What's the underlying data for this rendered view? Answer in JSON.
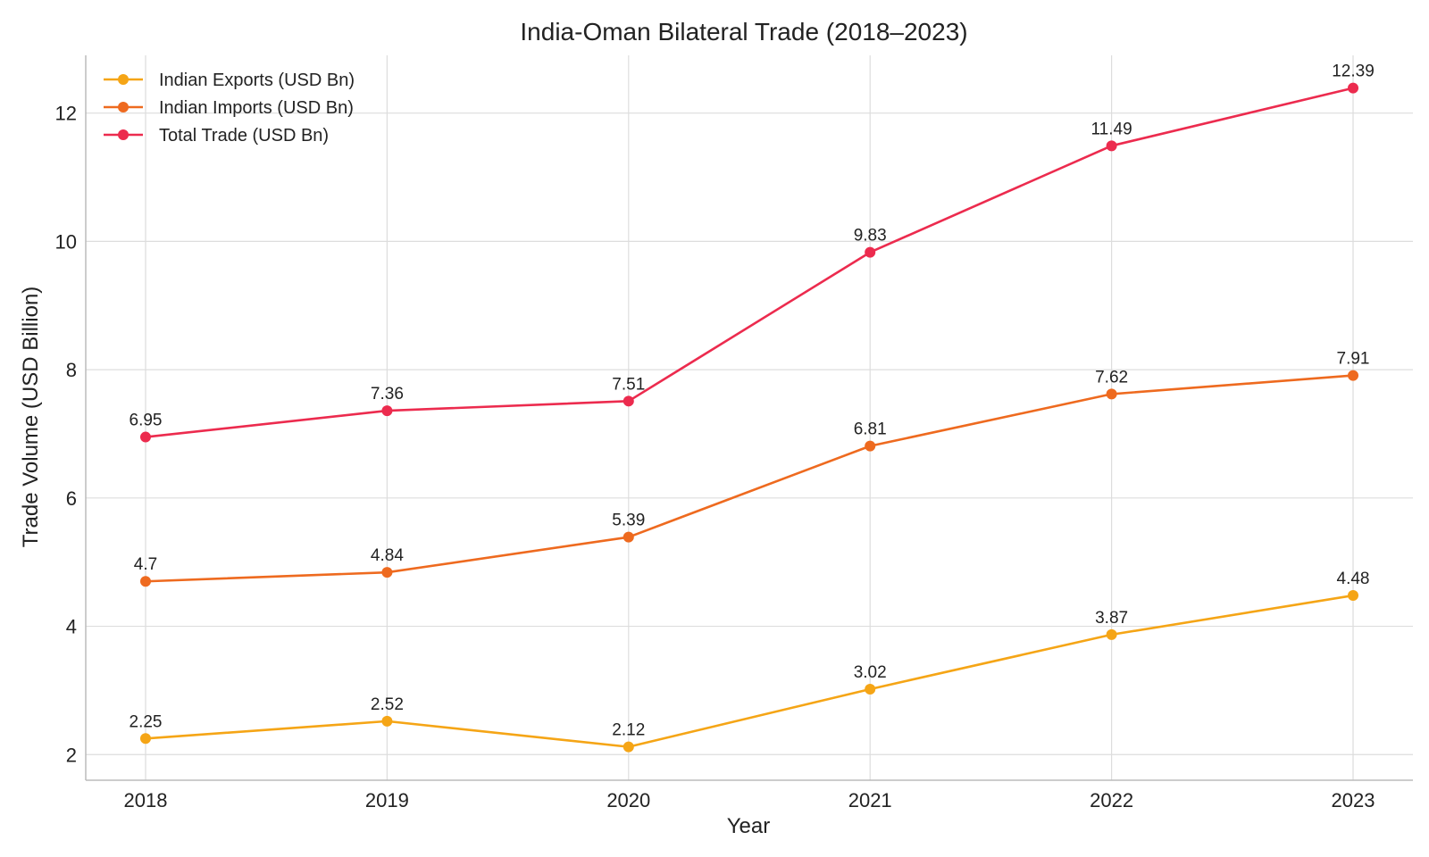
{
  "chart_data": {
    "type": "line",
    "title": "India-Oman Bilateral Trade (2018–2023)",
    "xlabel": "Year",
    "ylabel": "Trade Volume (USD Billion)",
    "categories": [
      "2018",
      "2019",
      "2020",
      "2021",
      "2022",
      "2023"
    ],
    "ylim": [
      1.6,
      12.9
    ],
    "yticks": [
      2,
      4,
      6,
      8,
      10,
      12
    ],
    "grid": true,
    "legend_position": "top-left",
    "series": [
      {
        "name": "Indian Exports (USD Bn)",
        "color": "#F5A516",
        "values": [
          2.25,
          2.52,
          2.12,
          3.02,
          3.87,
          4.48
        ],
        "labels": [
          "2.25",
          "2.52",
          "2.12",
          "3.02",
          "3.87",
          "4.48"
        ]
      },
      {
        "name": "Indian Imports (USD Bn)",
        "color": "#EE6A1F",
        "values": [
          4.7,
          4.84,
          5.39,
          6.81,
          7.62,
          7.91
        ],
        "labels": [
          "4.7",
          "4.84",
          "5.39",
          "6.81",
          "7.62",
          "7.91"
        ]
      },
      {
        "name": "Total Trade (USD Bn)",
        "color": "#EC2B4E",
        "values": [
          6.95,
          7.36,
          7.51,
          9.83,
          11.49,
          12.39
        ],
        "labels": [
          "6.95",
          "7.36",
          "7.51",
          "9.83",
          "11.49",
          "12.39"
        ]
      }
    ]
  }
}
